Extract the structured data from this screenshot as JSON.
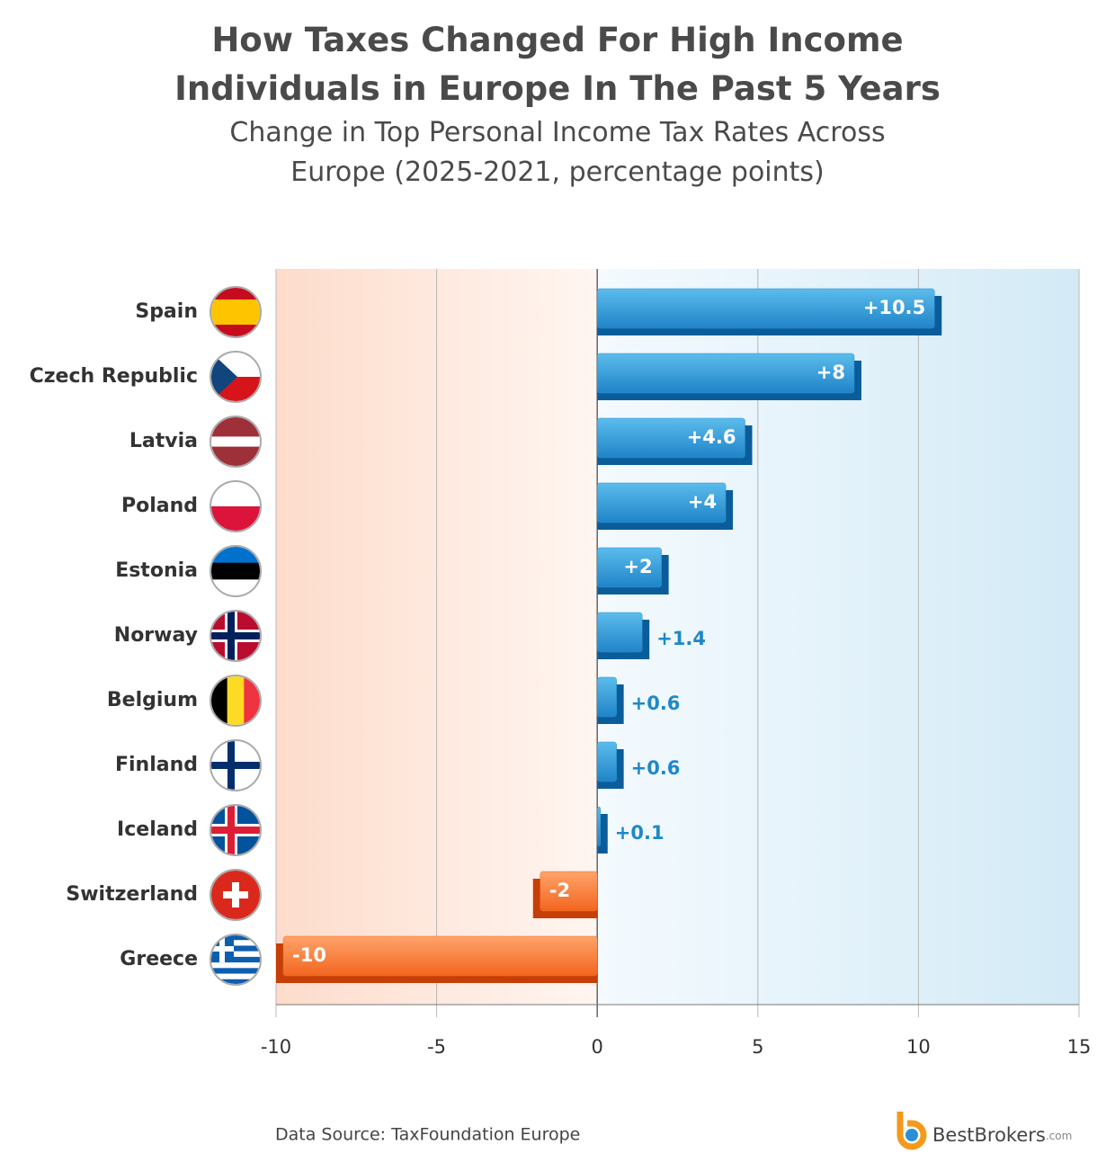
{
  "chart_data": {
    "type": "bar",
    "orientation": "horizontal",
    "title": "How Taxes Changed For High Income Individuals in Europe In The Past 5 Years",
    "subtitle": "Change in Top Personal Income Tax Rates Across Europe (2025-2021, percentage points)",
    "categories": [
      "Spain",
      "Czech Republic",
      "Latvia",
      "Poland",
      "Estonia",
      "Norway",
      "Belgium",
      "Finland",
      "Iceland",
      "Switzerland",
      "Greece"
    ],
    "values": [
      10.5,
      8,
      4.6,
      4,
      2,
      1.4,
      0.6,
      0.6,
      0.1,
      -2,
      -10
    ],
    "value_labels": [
      "+10.5",
      "+8",
      "+4.6",
      "+4",
      "+2",
      "+1.4",
      "+0.6",
      "+0.6",
      "+0.1",
      "-2",
      "-10"
    ],
    "positive_color": "#2a8fd4",
    "negative_color": "#f26a22",
    "xlim": [
      -10,
      15
    ],
    "xticks": [
      -10,
      -5,
      0,
      5,
      10,
      15
    ],
    "grid": true,
    "source": "Data Source: TaxFoundation Europe"
  },
  "logo": {
    "name": "BestBrokers",
    "suffix": ".com"
  }
}
